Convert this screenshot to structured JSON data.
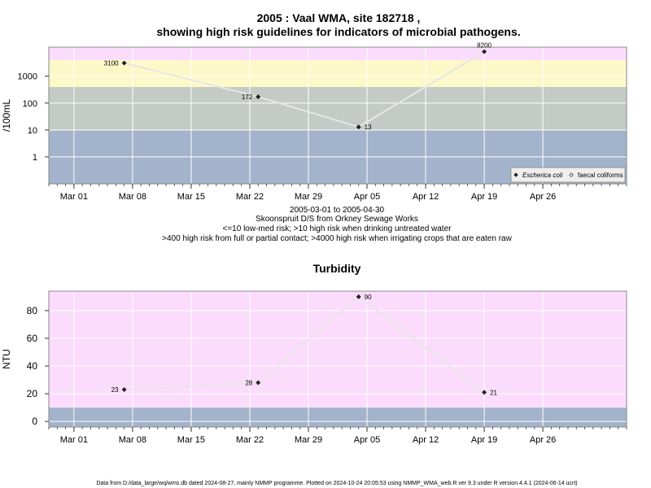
{
  "title_line1": "2005 : Vaal WMA, site 182718 ,",
  "title_line2": "showing high risk guidelines for indicators of microbial pathogens.",
  "caption": {
    "line1": "2005-03-01 to 2005-04-30",
    "line2": "Skoonspruit D/S from Orkney Sewage Works",
    "line3": "<=10 low-med risk; >10 high risk when drinking untreated water",
    "line4": ">400 high risk from full or partial contact; >4000 high risk when irrigating crops that are eaten raw"
  },
  "footer": "Data from D:/data_large/wq/wms.db dated 2024-08-27, mainly NMMP programme. Plotted on 2024-10-24 20:05:53 using NMMP_WMA_web.R ver 9.3 under R version 4.4.1 (2024-06-14 ucrt)",
  "colors": {
    "pink": "#fcdcfc",
    "yellow": "#fcf8c8",
    "sage": "#c4cbc4",
    "blue": "#a2b3cb",
    "line": "#e6e6e6",
    "marker": "#222222",
    "grid": "#ffffff"
  },
  "chart_data": [
    {
      "type": "line",
      "title": "",
      "xlabel": "",
      "ylabel": "/100mL",
      "y_scale": "log",
      "xlim": [
        "2005-02-26",
        "2005-05-06"
      ],
      "ylim": [
        0.1,
        12000
      ],
      "x_tick_labels": [
        "Mar 01",
        "Mar 08",
        "Mar 15",
        "Mar 22",
        "Mar 29",
        "Apr 05",
        "Apr 12",
        "Apr 19",
        "Apr 26"
      ],
      "x_tick_dates": [
        "2005-03-01",
        "2005-03-08",
        "2005-03-15",
        "2005-03-22",
        "2005-03-29",
        "2005-04-05",
        "2005-04-12",
        "2005-04-19",
        "2005-04-26"
      ],
      "y_tick_labels": [
        "1",
        "10",
        "100",
        "1000"
      ],
      "y_tick_values": [
        1,
        10,
        100,
        1000
      ],
      "bands": [
        {
          "from": 0.1,
          "to": 10,
          "color": "blue"
        },
        {
          "from": 10,
          "to": 400,
          "color": "sage"
        },
        {
          "from": 400,
          "to": 4000,
          "color": "yellow"
        },
        {
          "from": 4000,
          "to": 12000,
          "color": "pink"
        }
      ],
      "series": [
        {
          "name": "Escherica coli",
          "x": [
            "2005-03-07",
            "2005-03-23",
            "2005-04-04",
            "2005-04-19"
          ],
          "y": [
            3100,
            172,
            13,
            8200
          ],
          "labels": [
            "3100",
            "172",
            "13",
            "8200"
          ],
          "label_side": [
            "left",
            "left",
            "right",
            "top"
          ]
        }
      ],
      "legend": {
        "position": "bottom-right",
        "entries": [
          {
            "label": "Escherica coli",
            "marker": "filled-diamond"
          },
          {
            "label": "faecal coliforms",
            "marker": "open-diamond"
          }
        ]
      }
    },
    {
      "type": "line",
      "title": "Turbidity",
      "xlabel": "",
      "ylabel": "NTU",
      "y_scale": "linear",
      "xlim": [
        "2005-02-26",
        "2005-05-06"
      ],
      "ylim": [
        -4,
        94
      ],
      "x_tick_labels": [
        "Mar 01",
        "Mar 08",
        "Mar 15",
        "Mar 22",
        "Mar 29",
        "Apr 05",
        "Apr 12",
        "Apr 19",
        "Apr 26"
      ],
      "x_tick_dates": [
        "2005-03-01",
        "2005-03-08",
        "2005-03-15",
        "2005-03-22",
        "2005-03-29",
        "2005-04-05",
        "2005-04-12",
        "2005-04-19",
        "2005-04-26"
      ],
      "y_tick_labels": [
        "0",
        "20",
        "40",
        "60",
        "80"
      ],
      "y_tick_values": [
        0,
        20,
        40,
        60,
        80
      ],
      "bands": [
        {
          "from": -4,
          "to": 10,
          "color": "blue"
        },
        {
          "from": 10,
          "to": 94,
          "color": "pink"
        }
      ],
      "series": [
        {
          "name": "",
          "x": [
            "2005-03-07",
            "2005-03-23",
            "2005-04-04",
            "2005-04-19"
          ],
          "y": [
            23,
            28,
            90,
            21
          ],
          "labels": [
            "23",
            "28",
            "90",
            "21"
          ],
          "label_side": [
            "left",
            "left",
            "right",
            "right"
          ]
        }
      ]
    }
  ]
}
